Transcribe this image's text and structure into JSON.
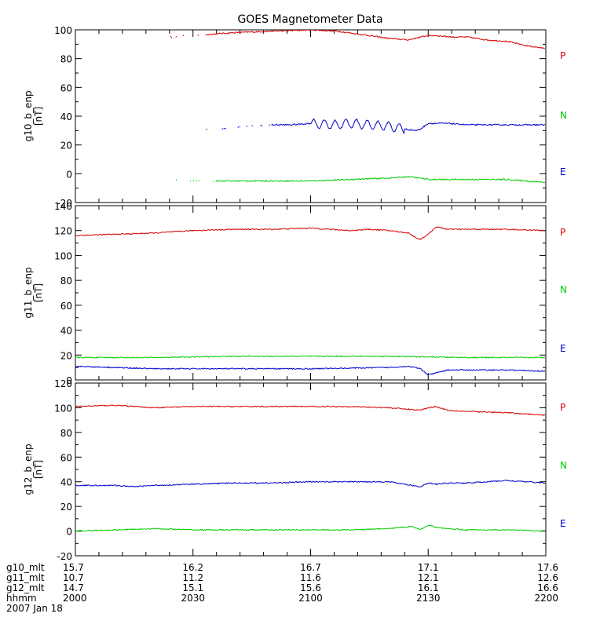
{
  "chart_data": {
    "type": "line",
    "title": "GOES Magnetometer Data",
    "date_label": "2007 Jan 18",
    "x_time_ticks": [
      "2000",
      "2030",
      "2100",
      "2130",
      "2200"
    ],
    "x_minutes": [
      0,
      30,
      60,
      90,
      120
    ],
    "x_range_minutes": [
      0,
      120
    ],
    "footer_rows": [
      {
        "label": "g10_mlt",
        "values": [
          "15.7",
          "16.2",
          "16.7",
          "17.1",
          "17.6"
        ]
      },
      {
        "label": "g11_mlt",
        "values": [
          "10.7",
          "11.2",
          "11.6",
          "12.1",
          "12.6"
        ]
      },
      {
        "label": "g12_mlt",
        "values": [
          "14.7",
          "15.1",
          "15.6",
          "16.1",
          "16.6"
        ]
      },
      {
        "label": "hhmm",
        "values": [
          "2000",
          "2030",
          "2100",
          "2130",
          "2200"
        ]
      }
    ],
    "panels": [
      {
        "ylabel": "g10_b_enp",
        "units": "[nT]",
        "ylim": [
          -20,
          100
        ],
        "yticks": [
          -20,
          0,
          20,
          40,
          60,
          80,
          100
        ],
        "legend": [
          {
            "name": "P",
            "color": "#d40000"
          },
          {
            "name": "N",
            "color": "#00cc00"
          },
          {
            "name": "E",
            "color": "#0000cc"
          }
        ],
        "series": [
          {
            "name": "P",
            "color": "#d40000",
            "sparse_before": 33,
            "x": [
              24,
              30,
              40,
              50,
              60,
              67,
              75,
              80,
              85,
              88,
              90,
              92,
              96,
              100,
              105,
              110,
              115,
              120
            ],
            "values": [
              95,
              96,
              98,
              99,
              100,
              99,
              96,
              94,
              93,
              95,
              96,
              96,
              95,
              95,
              93,
              92,
              89,
              87
            ]
          },
          {
            "name": "blue",
            "color": "#0000cc",
            "sparse_before": 50,
            "x": [
              24,
              30,
              36,
              40,
              45,
              50,
              55,
              60,
              66,
              70,
              75,
              80,
              84,
              87,
              88,
              90,
              95,
              100,
              110,
              120
            ],
            "values": [
              31,
              31,
              31,
              32,
              33,
              34,
              34,
              35,
              34,
              35,
              34,
              33,
              31,
              30,
              31,
              35,
              35,
              34,
              34,
              34
            ]
          },
          {
            "name": "green",
            "color": "#00cc00",
            "sparse_before": 36,
            "x": [
              24,
              30,
              36,
              40,
              50,
              60,
              70,
              80,
              85,
              88,
              90,
              95,
              100,
              110,
              120
            ],
            "values": [
              -4,
              -5,
              -5,
              -5,
              -5,
              -5,
              -4,
              -3,
              -2,
              -3,
              -4,
              -4,
              -4,
              -4,
              -6
            ]
          }
        ]
      },
      {
        "ylabel": "g11_b_enp",
        "units": "[nT]",
        "ylim": [
          0,
          140
        ],
        "yticks": [
          0,
          20,
          40,
          60,
          80,
          100,
          120,
          140
        ],
        "legend": [
          {
            "name": "P",
            "color": "#d40000"
          },
          {
            "name": "N",
            "color": "#00cc00"
          },
          {
            "name": "E",
            "color": "#0000cc"
          }
        ],
        "series": [
          {
            "name": "P",
            "color": "#d40000",
            "sparse_before": 0,
            "x": [
              0,
              10,
              20,
              30,
              40,
              50,
              60,
              65,
              70,
              75,
              80,
              85,
              87,
              88,
              90,
              92,
              95,
              100,
              110,
              120
            ],
            "values": [
              116,
              117,
              118,
              120,
              121,
              121,
              122,
              121,
              120,
              121,
              120,
              118,
              114,
              113,
              117,
              123,
              121,
              121,
              121,
              120
            ]
          },
          {
            "name": "green",
            "color": "#00cc00",
            "sparse_before": 0,
            "x": [
              0,
              20,
              40,
              60,
              80,
              100,
              120
            ],
            "values": [
              18,
              18,
              19,
              19,
              19,
              18,
              18
            ]
          },
          {
            "name": "blue",
            "color": "#0000cc",
            "sparse_before": 0,
            "x": [
              0,
              10,
              20,
              40,
              60,
              80,
              85,
              88,
              90,
              95,
              100,
              110,
              120
            ],
            "values": [
              11,
              10,
              9,
              9,
              9,
              10,
              11,
              9,
              4,
              8,
              8,
              8,
              7
            ]
          }
        ]
      },
      {
        "ylabel": "g12_b_enp",
        "units": "[nT]",
        "ylim": [
          -20,
          120
        ],
        "yticks": [
          -20,
          0,
          20,
          40,
          60,
          80,
          100,
          120
        ],
        "legend": [
          {
            "name": "P",
            "color": "#d40000"
          },
          {
            "name": "N",
            "color": "#00cc00"
          },
          {
            "name": "E",
            "color": "#0000cc"
          }
        ],
        "series": [
          {
            "name": "P",
            "color": "#d40000",
            "sparse_before": 0,
            "x": [
              0,
              10,
              20,
              30,
              40,
              50,
              60,
              70,
              80,
              88,
              90,
              92,
              95,
              100,
              110,
              120
            ],
            "values": [
              101,
              102,
              100,
              101,
              101,
              101,
              101,
              101,
              100,
              98,
              100,
              101,
              98,
              97,
              96,
              94
            ]
          },
          {
            "name": "blue",
            "color": "#0000cc",
            "sparse_before": 0,
            "x": [
              0,
              10,
              15,
              20,
              30,
              40,
              50,
              60,
              70,
              80,
              86,
              88,
              90,
              92,
              95,
              100,
              110,
              120
            ],
            "values": [
              37,
              37,
              36,
              37,
              38,
              39,
              39,
              40,
              40,
              40,
              37,
              36,
              39,
              38,
              39,
              39,
              41,
              39
            ]
          },
          {
            "name": "green",
            "color": "#00cc00",
            "sparse_before": 0,
            "x": [
              0,
              10,
              20,
              30,
              40,
              50,
              60,
              70,
              80,
              86,
              88,
              90,
              92,
              95,
              100,
              110,
              120
            ],
            "values": [
              0,
              1,
              2,
              1,
              1,
              1,
              1,
              1,
              2,
              4,
              1,
              5,
              3,
              2,
              1,
              1,
              0
            ]
          }
        ]
      }
    ]
  }
}
